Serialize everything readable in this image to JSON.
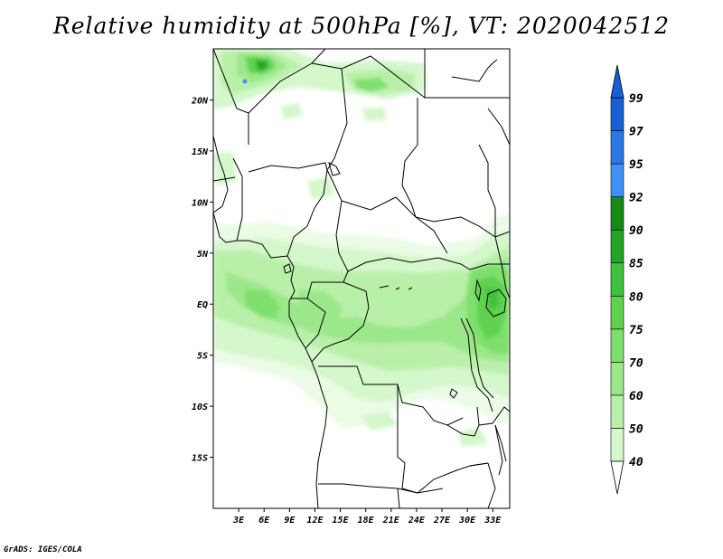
{
  "title": "Relative humidity at 500hPa [%], VT: 2020042512",
  "credit": "GrADS: IGES/COLA",
  "map": {
    "region": "Central Africa",
    "lon_range": [
      0,
      35
    ],
    "lat_range": [
      -20,
      25
    ],
    "lat_labels": [
      "20N",
      "15N",
      "10N",
      "5N",
      "EQ",
      "5S",
      "10S",
      "15S"
    ],
    "lat_values": [
      20,
      15,
      10,
      5,
      0,
      -5,
      -10,
      -15
    ],
    "lon_labels": [
      "3E",
      "6E",
      "9E",
      "12E",
      "15E",
      "18E",
      "21E",
      "24E",
      "27E",
      "30E",
      "33E"
    ],
    "lon_values": [
      3,
      6,
      9,
      12,
      15,
      18,
      21,
      24,
      27,
      30,
      33
    ]
  },
  "colorbar": {
    "levels": [
      "40",
      "50",
      "60",
      "70",
      "75",
      "80",
      "85",
      "90",
      "92",
      "95",
      "97",
      "99"
    ],
    "colors": [
      "#ebfbe6",
      "#d4f7cc",
      "#b9f0a9",
      "#9be88a",
      "#7fdf6c",
      "#5fd14e",
      "#3fc23b",
      "#23a524",
      "#158a14",
      "#3f92f5",
      "#2878e6",
      "#1560d6"
    ]
  },
  "colors": {
    "coast": "#000000",
    "background": "#ffffff"
  }
}
